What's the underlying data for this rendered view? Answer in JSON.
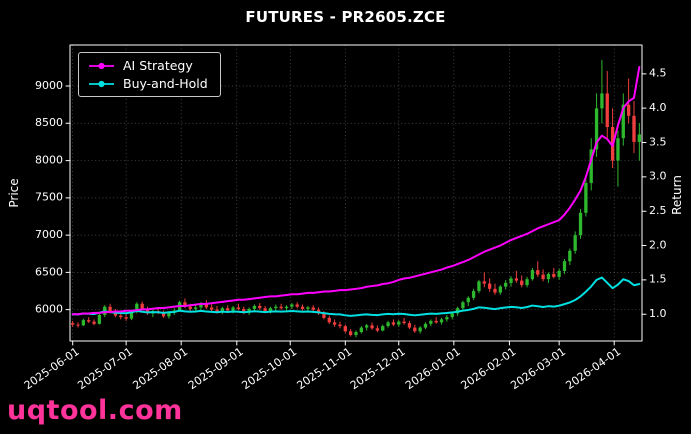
{
  "chart": {
    "title": "FUTURES - PR2605.ZCE",
    "ylabel_left": "Price",
    "ylabel_right": "Return"
  },
  "legend": {
    "items": [
      {
        "label": "AI Strategy",
        "color": "#ff00ff"
      },
      {
        "label": "Buy-and-Hold",
        "color": "#00e0e0"
      }
    ]
  },
  "watermark": {
    "text": "uqtool.com",
    "color": "#ff3399"
  },
  "chart_data": {
    "type": "candlestick+line",
    "title": "FUTURES - PR2605.ZCE",
    "background": "#000000",
    "grid": {
      "show": true,
      "style": "dotted"
    },
    "legend_position": "upper left",
    "ylabel_left": "Price",
    "ylabel_right": "Return",
    "price_axis": {
      "label": "Price",
      "ticks": [
        6000,
        6500,
        7000,
        7500,
        8000,
        8500,
        9000
      ],
      "range": [
        5580,
        9550
      ]
    },
    "return_axis": {
      "label": "Return",
      "ticks": [
        1.0,
        1.5,
        2.0,
        2.5,
        3.0,
        3.5,
        4.0,
        4.5
      ],
      "range": [
        0.61,
        4.92
      ]
    },
    "x_ticks": [
      {
        "pos": 0,
        "label": "2025-06-01"
      },
      {
        "pos": 10,
        "label": "2025-07-01"
      },
      {
        "pos": 20.3,
        "label": "2025-08-01"
      },
      {
        "pos": 30.7,
        "label": "2025-09-01"
      },
      {
        "pos": 40.7,
        "label": "2025-10-01"
      },
      {
        "pos": 51,
        "label": "2025-11-01"
      },
      {
        "pos": 61,
        "label": "2025-12-01"
      },
      {
        "pos": 71.3,
        "label": "2026-01-01"
      },
      {
        "pos": 81.7,
        "label": "2026-02-01"
      },
      {
        "pos": 91,
        "label": "2026-03-01"
      },
      {
        "pos": 101.3,
        "label": "2026-04-01"
      }
    ],
    "candles": {
      "up_color": "#2eb82e",
      "down_color": "#f03e3e",
      "ohlc": [
        [
          5820,
          5850,
          5770,
          5800
        ],
        [
          5800,
          5830,
          5760,
          5790
        ],
        [
          5790,
          5880,
          5780,
          5860
        ],
        [
          5860,
          5900,
          5820,
          5840
        ],
        [
          5840,
          5870,
          5790,
          5810
        ],
        [
          5810,
          5950,
          5800,
          5930
        ],
        [
          5930,
          6060,
          5900,
          6040
        ],
        [
          6040,
          6080,
          5950,
          5980
        ],
        [
          5980,
          6010,
          5900,
          5920
        ],
        [
          5920,
          5960,
          5870,
          5900
        ],
        [
          5900,
          5940,
          5850,
          5880
        ],
        [
          5880,
          5990,
          5860,
          5970
        ],
        [
          5970,
          6100,
          5950,
          6080
        ],
        [
          6080,
          6110,
          5990,
          6010
        ],
        [
          6010,
          6040,
          5930,
          5950
        ],
        [
          5950,
          6000,
          5900,
          5980
        ],
        [
          5980,
          6030,
          5940,
          5960
        ],
        [
          5960,
          5990,
          5890,
          5910
        ],
        [
          5910,
          5980,
          5880,
          5960
        ],
        [
          5960,
          6020,
          5930,
          5990
        ],
        [
          5990,
          6120,
          5970,
          6100
        ],
        [
          6100,
          6150,
          6020,
          6040
        ],
        [
          6040,
          6080,
          5980,
          6010
        ],
        [
          6010,
          6060,
          5960,
          6030
        ],
        [
          6030,
          6100,
          6000,
          6080
        ],
        [
          6080,
          6130,
          6010,
          6030
        ],
        [
          6030,
          6070,
          5970,
          6000
        ],
        [
          6000,
          6050,
          5950,
          5970
        ],
        [
          5970,
          6040,
          5940,
          6020
        ],
        [
          6020,
          6060,
          5960,
          5990
        ],
        [
          5990,
          6050,
          5950,
          6030
        ],
        [
          6030,
          6080,
          5990,
          6010
        ],
        [
          6010,
          6040,
          5940,
          5960
        ],
        [
          5960,
          6030,
          5930,
          6010
        ],
        [
          6010,
          6070,
          5980,
          6050
        ],
        [
          6050,
          6090,
          6000,
          6020
        ],
        [
          6020,
          6050,
          5960,
          5980
        ],
        [
          5980,
          6040,
          5950,
          6020
        ],
        [
          6020,
          6070,
          5990,
          6040
        ],
        [
          6040,
          6080,
          6000,
          6020
        ],
        [
          6020,
          6060,
          5980,
          6040
        ],
        [
          6040,
          6090,
          6010,
          6070
        ],
        [
          6070,
          6100,
          6020,
          6040
        ],
        [
          6040,
          6070,
          5990,
          6010
        ],
        [
          6010,
          6050,
          5970,
          6030
        ],
        [
          6030,
          6060,
          5980,
          6000
        ],
        [
          6000,
          6030,
          5930,
          5950
        ],
        [
          5950,
          5980,
          5870,
          5890
        ],
        [
          5890,
          5920,
          5810,
          5830
        ],
        [
          5830,
          5870,
          5770,
          5800
        ],
        [
          5800,
          5840,
          5750,
          5780
        ],
        [
          5780,
          5800,
          5690,
          5710
        ],
        [
          5710,
          5740,
          5640,
          5660
        ],
        [
          5660,
          5720,
          5630,
          5700
        ],
        [
          5700,
          5780,
          5680,
          5760
        ],
        [
          5760,
          5810,
          5720,
          5790
        ],
        [
          5790,
          5830,
          5730,
          5750
        ],
        [
          5750,
          5790,
          5700,
          5720
        ],
        [
          5720,
          5800,
          5710,
          5780
        ],
        [
          5780,
          5850,
          5760,
          5830
        ],
        [
          5830,
          5870,
          5780,
          5800
        ],
        [
          5800,
          5860,
          5770,
          5840
        ],
        [
          5840,
          5890,
          5800,
          5820
        ],
        [
          5820,
          5850,
          5740,
          5760
        ],
        [
          5760,
          5800,
          5690,
          5710
        ],
        [
          5710,
          5780,
          5680,
          5760
        ],
        [
          5760,
          5830,
          5740,
          5810
        ],
        [
          5810,
          5870,
          5780,
          5850
        ],
        [
          5850,
          5900,
          5810,
          5830
        ],
        [
          5830,
          5890,
          5800,
          5870
        ],
        [
          5870,
          5930,
          5840,
          5900
        ],
        [
          5900,
          5970,
          5870,
          5950
        ],
        [
          5950,
          6040,
          5920,
          6020
        ],
        [
          6020,
          6120,
          6000,
          6100
        ],
        [
          6100,
          6180,
          6050,
          6160
        ],
        [
          6160,
          6280,
          6130,
          6250
        ],
        [
          6250,
          6400,
          6220,
          6380
        ],
        [
          6380,
          6500,
          6300,
          6350
        ],
        [
          6350,
          6420,
          6240,
          6280
        ],
        [
          6280,
          6350,
          6200,
          6230
        ],
        [
          6230,
          6330,
          6200,
          6310
        ],
        [
          6310,
          6400,
          6270,
          6360
        ],
        [
          6360,
          6450,
          6310,
          6420
        ],
        [
          6420,
          6520,
          6360,
          6390
        ],
        [
          6390,
          6460,
          6300,
          6330
        ],
        [
          6330,
          6440,
          6300,
          6410
        ],
        [
          6410,
          6560,
          6390,
          6530
        ],
        [
          6530,
          6650,
          6440,
          6470
        ],
        [
          6470,
          6540,
          6380,
          6410
        ],
        [
          6410,
          6500,
          6360,
          6480
        ],
        [
          6480,
          6560,
          6420,
          6440
        ],
        [
          6440,
          6550,
          6400,
          6520
        ],
        [
          6520,
          6680,
          6480,
          6650
        ],
        [
          6650,
          6820,
          6600,
          6790
        ],
        [
          6790,
          7050,
          6750,
          7000
        ],
        [
          7000,
          7350,
          6950,
          7300
        ],
        [
          7300,
          7800,
          7250,
          7700
        ],
        [
          7700,
          8300,
          7600,
          8150
        ],
        [
          8150,
          8900,
          8050,
          8700
        ],
        [
          8700,
          9350,
          8500,
          8900
        ],
        [
          8900,
          9200,
          8300,
          8450
        ],
        [
          8450,
          8700,
          7900,
          8000
        ],
        [
          8000,
          8400,
          7650,
          8300
        ],
        [
          8300,
          8900,
          8200,
          8750
        ],
        [
          8750,
          9100,
          8500,
          8600
        ],
        [
          8600,
          8800,
          8100,
          8250
        ],
        [
          8250,
          8500,
          8000,
          8350
        ]
      ]
    },
    "series": [
      {
        "name": "AI Strategy",
        "axis": "return",
        "color": "#ff00ff",
        "values": [
          1.0,
          1.0,
          1.01,
          1.01,
          1.02,
          1.02,
          1.03,
          1.03,
          1.04,
          1.04,
          1.05,
          1.05,
          1.06,
          1.07,
          1.07,
          1.08,
          1.09,
          1.09,
          1.1,
          1.11,
          1.12,
          1.12,
          1.13,
          1.14,
          1.15,
          1.15,
          1.16,
          1.17,
          1.18,
          1.19,
          1.2,
          1.21,
          1.21,
          1.22,
          1.23,
          1.24,
          1.25,
          1.26,
          1.26,
          1.27,
          1.28,
          1.29,
          1.29,
          1.3,
          1.31,
          1.31,
          1.32,
          1.33,
          1.33,
          1.34,
          1.35,
          1.35,
          1.36,
          1.37,
          1.38,
          1.4,
          1.41,
          1.42,
          1.44,
          1.45,
          1.47,
          1.5,
          1.52,
          1.53,
          1.55,
          1.57,
          1.59,
          1.61,
          1.63,
          1.65,
          1.68,
          1.7,
          1.73,
          1.76,
          1.79,
          1.83,
          1.87,
          1.91,
          1.94,
          1.97,
          2.0,
          2.04,
          2.08,
          2.11,
          2.14,
          2.17,
          2.21,
          2.25,
          2.28,
          2.31,
          2.34,
          2.37,
          2.45,
          2.55,
          2.67,
          2.8,
          3.0,
          3.25,
          3.5,
          3.6,
          3.55,
          3.45,
          3.75,
          4.0,
          4.1,
          4.15,
          4.6
        ]
      },
      {
        "name": "Buy-and-Hold",
        "axis": "return",
        "color": "#00e0e0",
        "values": [
          1.0,
          0.998,
          1.01,
          1.007,
          1.002,
          1.022,
          1.041,
          1.031,
          1.021,
          1.017,
          1.014,
          1.029,
          1.048,
          1.036,
          1.026,
          1.031,
          1.028,
          1.019,
          1.028,
          1.033,
          1.052,
          1.041,
          1.036,
          1.04,
          1.048,
          1.04,
          1.034,
          1.029,
          1.038,
          1.033,
          1.04,
          1.036,
          1.028,
          1.036,
          1.043,
          1.038,
          1.031,
          1.038,
          1.041,
          1.038,
          1.041,
          1.047,
          1.041,
          1.036,
          1.04,
          1.034,
          1.026,
          1.016,
          1.005,
          1.0,
          0.997,
          0.984,
          0.976,
          0.983,
          0.993,
          0.998,
          0.991,
          0.986,
          0.997,
          1.005,
          1.0,
          1.007,
          1.003,
          0.993,
          0.984,
          0.993,
          1.002,
          1.009,
          1.005,
          1.012,
          1.017,
          1.026,
          1.038,
          1.052,
          1.062,
          1.078,
          1.1,
          1.095,
          1.083,
          1.074,
          1.088,
          1.097,
          1.107,
          1.102,
          1.091,
          1.105,
          1.126,
          1.116,
          1.105,
          1.117,
          1.11,
          1.124,
          1.147,
          1.171,
          1.207,
          1.259,
          1.328,
          1.405,
          1.5,
          1.534,
          1.457,
          1.379,
          1.431,
          1.509,
          1.483,
          1.422,
          1.44
        ]
      }
    ]
  }
}
